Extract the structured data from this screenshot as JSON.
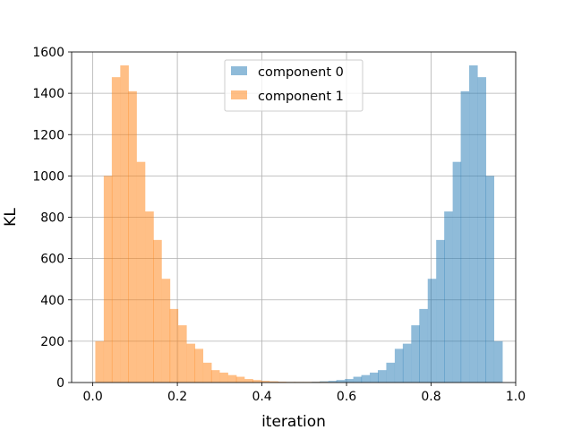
{
  "chart_data": {
    "type": "bar",
    "xlabel": "iteration",
    "ylabel": "KL",
    "xlim": [
      -0.05,
      1.0
    ],
    "ylim": [
      0,
      1600
    ],
    "xticks": [
      "0.0",
      "0.2",
      "0.4",
      "0.6",
      "0.8",
      "1.0"
    ],
    "yticks": [
      "0",
      "200",
      "400",
      "600",
      "800",
      "1000",
      "1200",
      "1400",
      "1600"
    ],
    "grid": true,
    "legend": "top-center",
    "bin_width": 0.0196,
    "series": [
      {
        "name": "component 0",
        "color": "#1f77b4",
        "opacity": 0.5,
        "bins": [
          {
            "x": 0.4,
            "y": 2
          },
          {
            "x": 0.42,
            "y": 3
          },
          {
            "x": 0.439,
            "y": 3
          },
          {
            "x": 0.459,
            "y": 3
          },
          {
            "x": 0.478,
            "y": 3
          },
          {
            "x": 0.498,
            "y": 3
          },
          {
            "x": 0.518,
            "y": 4
          },
          {
            "x": 0.537,
            "y": 6
          },
          {
            "x": 0.557,
            "y": 8
          },
          {
            "x": 0.576,
            "y": 12
          },
          {
            "x": 0.596,
            "y": 17
          },
          {
            "x": 0.616,
            "y": 28
          },
          {
            "x": 0.635,
            "y": 36
          },
          {
            "x": 0.655,
            "y": 48
          },
          {
            "x": 0.674,
            "y": 60
          },
          {
            "x": 0.694,
            "y": 96
          },
          {
            "x": 0.714,
            "y": 163
          },
          {
            "x": 0.733,
            "y": 188
          },
          {
            "x": 0.753,
            "y": 277
          },
          {
            "x": 0.772,
            "y": 356
          },
          {
            "x": 0.792,
            "y": 502
          },
          {
            "x": 0.812,
            "y": 690
          },
          {
            "x": 0.831,
            "y": 828
          },
          {
            "x": 0.851,
            "y": 1068
          },
          {
            "x": 0.87,
            "y": 1410
          },
          {
            "x": 0.89,
            "y": 1535
          },
          {
            "x": 0.91,
            "y": 1478
          },
          {
            "x": 0.929,
            "y": 1000
          },
          {
            "x": 0.949,
            "y": 200
          }
        ]
      },
      {
        "name": "component 1",
        "color": "#ff7f0e",
        "opacity": 0.5,
        "bins": [
          {
            "x": 0.006,
            "y": 200
          },
          {
            "x": 0.026,
            "y": 1000
          },
          {
            "x": 0.045,
            "y": 1478
          },
          {
            "x": 0.065,
            "y": 1535
          },
          {
            "x": 0.084,
            "y": 1410
          },
          {
            "x": 0.104,
            "y": 1068
          },
          {
            "x": 0.124,
            "y": 828
          },
          {
            "x": 0.143,
            "y": 690
          },
          {
            "x": 0.163,
            "y": 502
          },
          {
            "x": 0.182,
            "y": 356
          },
          {
            "x": 0.202,
            "y": 277
          },
          {
            "x": 0.222,
            "y": 188
          },
          {
            "x": 0.241,
            "y": 163
          },
          {
            "x": 0.261,
            "y": 96
          },
          {
            "x": 0.28,
            "y": 60
          },
          {
            "x": 0.3,
            "y": 48
          },
          {
            "x": 0.32,
            "y": 36
          },
          {
            "x": 0.339,
            "y": 28
          },
          {
            "x": 0.359,
            "y": 17
          },
          {
            "x": 0.378,
            "y": 12
          },
          {
            "x": 0.398,
            "y": 8
          },
          {
            "x": 0.418,
            "y": 6
          },
          {
            "x": 0.437,
            "y": 4
          },
          {
            "x": 0.457,
            "y": 3
          },
          {
            "x": 0.476,
            "y": 3
          },
          {
            "x": 0.496,
            "y": 3
          },
          {
            "x": 0.516,
            "y": 3
          },
          {
            "x": 0.535,
            "y": 3
          },
          {
            "x": 0.555,
            "y": 2
          }
        ]
      }
    ]
  }
}
